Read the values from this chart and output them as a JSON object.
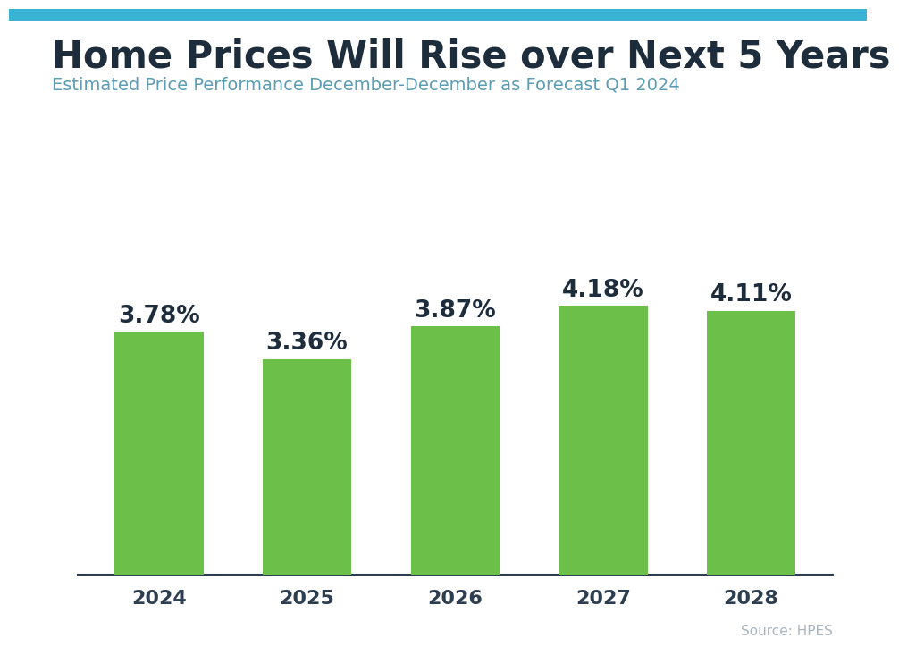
{
  "title": "Home Prices Will Rise over Next 5 Years",
  "subtitle": "Estimated Price Performance December-December as Forecast Q1 2024",
  "source": "Source: HPES",
  "categories": [
    "2024",
    "2025",
    "2026",
    "2027",
    "2028"
  ],
  "values": [
    3.78,
    3.36,
    3.87,
    4.18,
    4.11
  ],
  "labels": [
    "3.78%",
    "3.36%",
    "3.87%",
    "4.18%",
    "4.11%"
  ],
  "bar_color": "#6cc04a",
  "title_color": "#1e2d3b",
  "subtitle_color": "#5b9db5",
  "tick_color": "#2d3e50",
  "source_color": "#aab4bc",
  "background_color": "#ffffff",
  "top_bar_color": "#3ab4d4",
  "ylim": [
    0,
    5.5
  ],
  "title_fontsize": 30,
  "subtitle_fontsize": 14,
  "label_fontsize": 19,
  "tick_fontsize": 16,
  "source_fontsize": 11,
  "bar_width": 0.6
}
